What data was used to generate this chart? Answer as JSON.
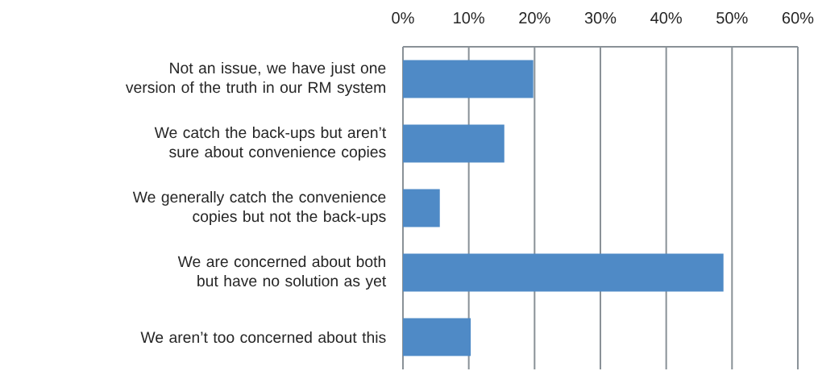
{
  "chart_data": {
    "type": "bar",
    "orientation": "horizontal",
    "categories": [
      "Not an issue, we have just one version of the truth in our RM system",
      "We catch the back-ups but aren’t sure about convenience copies",
      "We generally catch the convenience copies but not the back-ups",
      "We are concerned about both but have no solution as yet",
      "We aren’t too concerned about this"
    ],
    "values": [
      19.8,
      15.4,
      5.6,
      48.7,
      10.3
    ],
    "color": "#4f8ac6",
    "xlim": [
      0,
      60
    ],
    "xticks": [
      {
        "value": 0,
        "label": "0%"
      },
      {
        "value": 10,
        "label": "10%"
      },
      {
        "value": 20,
        "label": "20%"
      },
      {
        "value": 30,
        "label": "30%"
      },
      {
        "value": 40,
        "label": "40%"
      },
      {
        "value": 50,
        "label": "50%"
      },
      {
        "value": 60,
        "label": "60%"
      }
    ],
    "grid": "x"
  }
}
